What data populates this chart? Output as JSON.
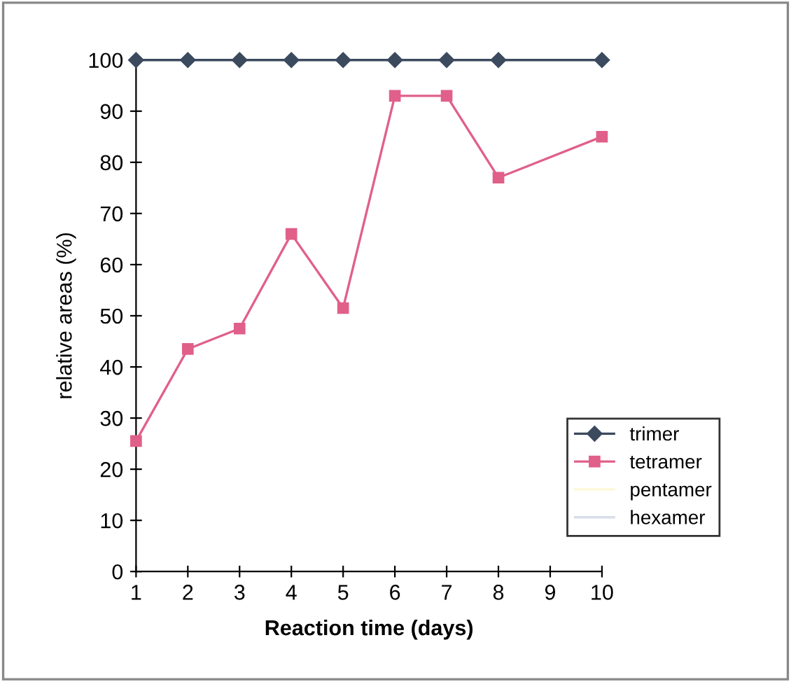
{
  "chart_data": {
    "type": "line",
    "xlabel": "Reaction time (days)",
    "ylabel": "relative areas (%)",
    "categories": [
      "1",
      "2",
      "3",
      "4",
      "5",
      "6",
      "7",
      "8",
      "9",
      "10"
    ],
    "ylim": [
      0,
      100
    ],
    "yticks": [
      0,
      10,
      20,
      30,
      40,
      50,
      60,
      70,
      80,
      90,
      100
    ],
    "grid": false,
    "legend": "right",
    "series": [
      {
        "name": "trimer",
        "color": "#3c4a5e",
        "marker": "diamond",
        "values": [
          100,
          100,
          100,
          100,
          100,
          100,
          100,
          100,
          null,
          100
        ]
      },
      {
        "name": "tetramer",
        "color": "#e0608a",
        "marker": "square",
        "values": [
          25.5,
          43.5,
          47.5,
          66,
          51.5,
          93,
          93,
          77,
          null,
          85
        ]
      },
      {
        "name": "pentamer",
        "color": "#fbf8d8",
        "marker": "none",
        "values": [
          null,
          null,
          null,
          null,
          null,
          null,
          null,
          null,
          null,
          null
        ]
      },
      {
        "name": "hexamer",
        "color": "#d8dde8",
        "marker": "none",
        "values": [
          null,
          null,
          null,
          null,
          null,
          null,
          null,
          null,
          null,
          null
        ]
      }
    ]
  }
}
